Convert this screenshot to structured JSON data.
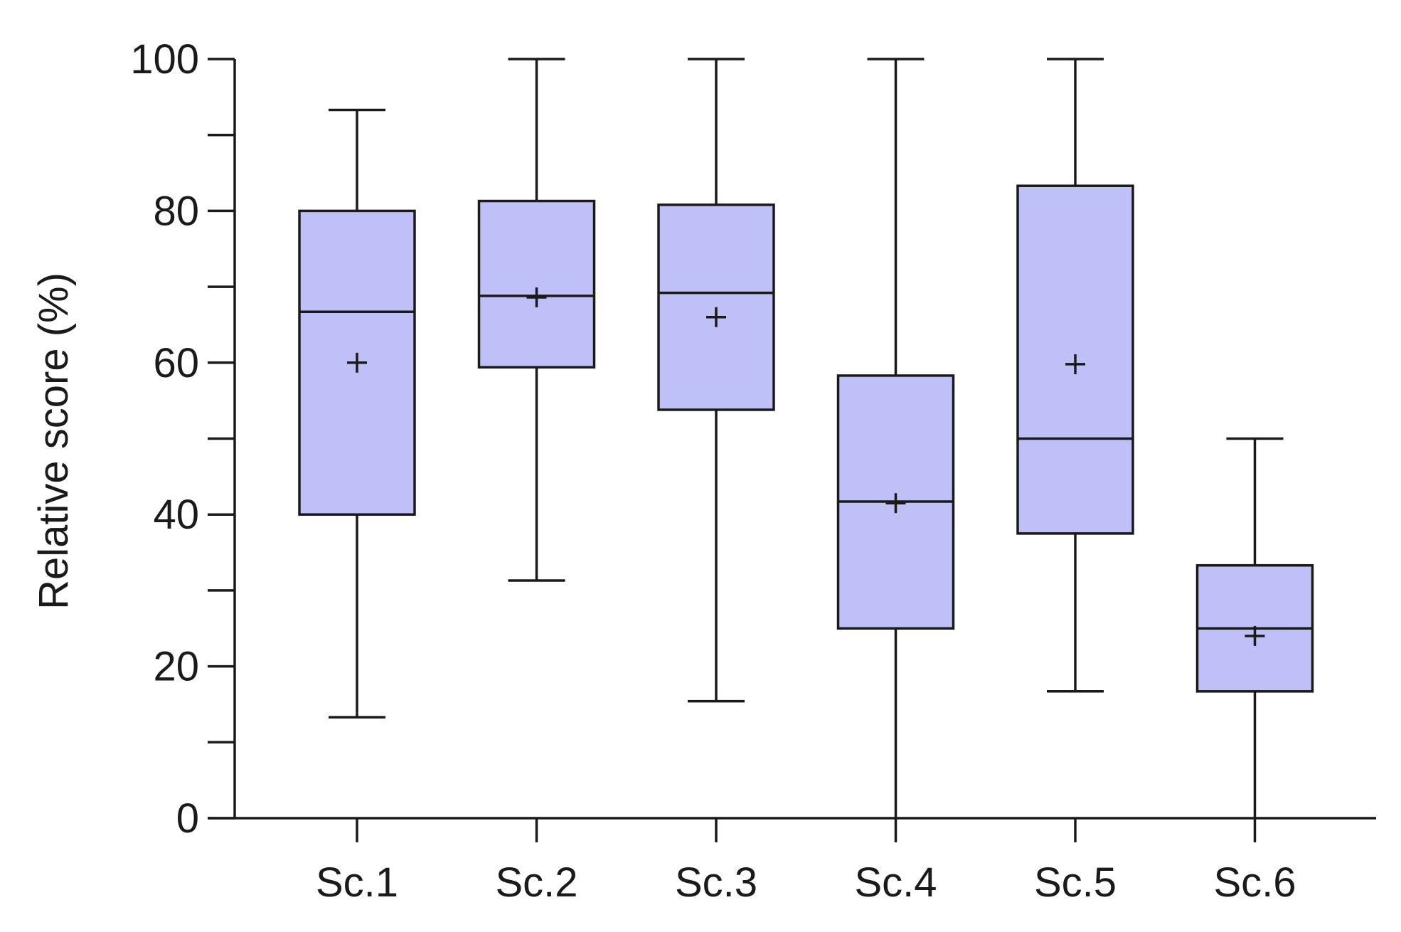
{
  "chart_data": {
    "type": "box",
    "title": "",
    "xlabel": "",
    "ylabel": "Relative score (%)",
    "ylim": [
      0,
      100
    ],
    "yticks": [
      0,
      20,
      40,
      60,
      80,
      100
    ],
    "yminor_ticks": [
      10,
      30,
      50,
      70,
      90
    ],
    "grid": false,
    "legend": "none",
    "box_fill_color": "#c0c0f8",
    "line_color": "#1a1a1a",
    "categories": [
      "Sc.1",
      "Sc.2",
      "Sc.3",
      "Sc.4",
      "Sc.5",
      "Sc.6"
    ],
    "boxes": [
      {
        "category": "Sc.1",
        "min": 13.3,
        "q1": 40.0,
        "median": 66.7,
        "q3": 80.0,
        "max": 93.3,
        "mean": 60.0
      },
      {
        "category": "Sc.2",
        "min": 31.3,
        "q1": 59.4,
        "median": 68.8,
        "q3": 81.3,
        "max": 100.0,
        "mean": 68.6
      },
      {
        "category": "Sc.3",
        "min": 15.4,
        "q1": 53.8,
        "median": 69.2,
        "q3": 80.8,
        "max": 100.0,
        "mean": 66.0
      },
      {
        "category": "Sc.4",
        "min": 0.0,
        "q1": 25.0,
        "median": 41.7,
        "q3": 58.3,
        "max": 100.0,
        "mean": 41.5
      },
      {
        "category": "Sc.5",
        "min": 16.7,
        "q1": 37.5,
        "median": 50.0,
        "q3": 83.3,
        "max": 100.0,
        "mean": 59.8
      },
      {
        "category": "Sc.6",
        "min": 0.0,
        "q1": 16.7,
        "median": 25.0,
        "q3": 33.3,
        "max": 50.0,
        "mean": 24.0
      }
    ]
  }
}
